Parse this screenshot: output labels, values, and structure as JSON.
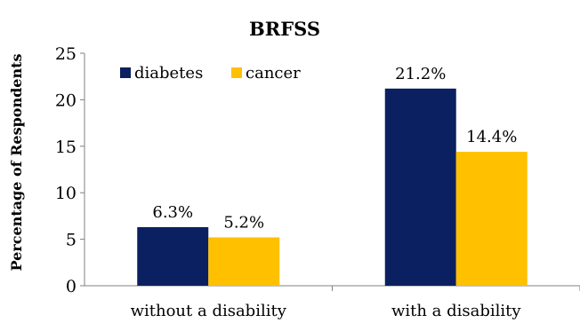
{
  "chart_data": {
    "type": "bar",
    "title_lines": [
      "",
      "BRFSS"
    ],
    "ylabel": "Percentage of Respondents",
    "xlabel": "",
    "categories": [
      "without a disability",
      "with a disability"
    ],
    "series": [
      {
        "name": "diabetes",
        "values": [
          6.3,
          21.2
        ],
        "labels": [
          "6.3%",
          "21.2%"
        ],
        "color": "#0b2060"
      },
      {
        "name": "cancer",
        "values": [
          5.2,
          14.4
        ],
        "labels": [
          "5.2%",
          "14.4%"
        ],
        "color": "#ffc000"
      }
    ],
    "ylim": [
      0,
      25
    ],
    "yticks": [
      0,
      5,
      10,
      15,
      20,
      25
    ],
    "grid": false,
    "legend_position": "top-left"
  }
}
